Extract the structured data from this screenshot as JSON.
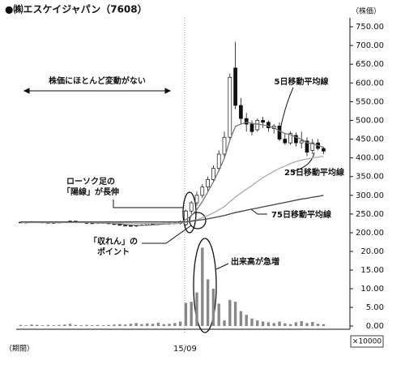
{
  "chart_data": {
    "type": "candlestick",
    "title": "●㈱エスケイジャパン（7608）",
    "y_axis_label": "（株価）",
    "x_axis_label": "（期間）",
    "categories": [
      null,
      null,
      null,
      null,
      null,
      null,
      null,
      null,
      null,
      null,
      null,
      null,
      null,
      null,
      null,
      null,
      null,
      null,
      null,
      null,
      null,
      null,
      null,
      null,
      null,
      null,
      null,
      null,
      null,
      null,
      "15/09",
      null,
      null,
      null,
      null,
      null,
      null,
      null,
      null,
      null,
      null,
      null,
      null,
      null,
      null,
      null,
      null,
      null,
      null,
      null,
      null,
      null,
      null,
      null,
      null,
      null
    ],
    "open": [
      228,
      227,
      228,
      229,
      228,
      227,
      226,
      227,
      228,
      229,
      231,
      229,
      227,
      225,
      226,
      227,
      226,
      224,
      222,
      220,
      219,
      218,
      220,
      221,
      224,
      222,
      225,
      224,
      226,
      225,
      222,
      258,
      280,
      300,
      322,
      342,
      372,
      410,
      455,
      640,
      540,
      505,
      490,
      475,
      500,
      495,
      478,
      485,
      450,
      440,
      460,
      440,
      445,
      420,
      440,
      425
    ],
    "high": [
      230,
      229,
      231,
      230,
      229,
      229,
      228,
      229,
      230,
      233,
      232,
      230,
      228,
      227,
      228,
      228,
      227,
      226,
      224,
      222,
      221,
      221,
      223,
      225,
      226,
      226,
      228,
      227,
      229,
      232,
      262,
      285,
      310,
      330,
      350,
      380,
      420,
      470,
      625,
      710,
      560,
      520,
      500,
      505,
      510,
      500,
      490,
      495,
      465,
      470,
      468,
      470,
      455,
      450,
      450,
      430
    ],
    "low": [
      226,
      225,
      226,
      227,
      226,
      225,
      224,
      225,
      226,
      227,
      228,
      226,
      224,
      223,
      224,
      225,
      223,
      221,
      219,
      217,
      216,
      215,
      218,
      219,
      220,
      220,
      222,
      221,
      223,
      222,
      218,
      250,
      272,
      292,
      310,
      335,
      365,
      400,
      450,
      530,
      490,
      470,
      460,
      470,
      480,
      470,
      465,
      445,
      435,
      435,
      430,
      425,
      405,
      410,
      420,
      410
    ],
    "close": [
      227,
      228,
      229,
      228,
      227,
      226,
      227,
      228,
      229,
      231,
      229,
      227,
      225,
      226,
      227,
      226,
      224,
      222,
      220,
      219,
      218,
      220,
      221,
      224,
      222,
      225,
      224,
      226,
      225,
      230,
      258,
      280,
      300,
      322,
      342,
      372,
      410,
      455,
      615,
      540,
      505,
      490,
      470,
      500,
      495,
      480,
      485,
      450,
      440,
      465,
      440,
      445,
      415,
      440,
      425,
      418
    ],
    "ylim": [
      200,
      750
    ],
    "yticks": [
      {
        "value": 200,
        "label": "200.00"
      },
      {
        "value": 250,
        "label": "250.00"
      },
      {
        "value": 300,
        "label": "300.00"
      },
      {
        "value": 350,
        "label": "350.00"
      },
      {
        "value": 400,
        "label": "400.00"
      },
      {
        "value": 450,
        "label": "450.00"
      },
      {
        "value": 500,
        "label": "500.00"
      },
      {
        "value": 550,
        "label": "550.00"
      },
      {
        "value": 600,
        "label": "600.00"
      },
      {
        "value": 650,
        "label": "650.00"
      },
      {
        "value": 700,
        "label": "700.00"
      },
      {
        "value": 750,
        "label": "750.00"
      }
    ],
    "series": [
      {
        "name": "5日移動平均線",
        "color": "#777777",
        "values": [
          228,
          228,
          228,
          228,
          228,
          227,
          227,
          227,
          228,
          229,
          229,
          229,
          228,
          227,
          226,
          226,
          226,
          225,
          224,
          222,
          221,
          220,
          220,
          220,
          221,
          222,
          223,
          224,
          225,
          226,
          235,
          245,
          262,
          283,
          309,
          336,
          366,
          399,
          447,
          484,
          490,
          495,
          492,
          490,
          488,
          485,
          480,
          472,
          465,
          462,
          455,
          450,
          440,
          438,
          433,
          428
        ]
      },
      {
        "name": "25日移動平均線",
        "color": "#aaaaaa",
        "values": [
          227,
          227,
          227,
          227,
          227,
          227,
          227,
          227,
          227,
          227,
          227,
          227,
          227,
          227,
          227,
          227,
          227,
          226,
          226,
          226,
          226,
          225,
          225,
          225,
          225,
          225,
          225,
          225,
          225,
          226,
          228,
          231,
          235,
          240,
          246,
          253,
          261,
          270,
          283,
          295,
          306,
          316,
          326,
          337,
          347,
          356,
          364,
          372,
          378,
          385,
          390,
          394,
          397,
          400,
          402,
          404
        ]
      },
      {
        "name": "75日移動平均線",
        "color": "#444444",
        "values": [
          229,
          229,
          229,
          229,
          229,
          229,
          229,
          229,
          229,
          229,
          229,
          229,
          229,
          229,
          229,
          229,
          229,
          229,
          229,
          229,
          229,
          229,
          229,
          229,
          229,
          229,
          229,
          229,
          229,
          229,
          229,
          231,
          233,
          235,
          237,
          240,
          243,
          246,
          250,
          254,
          257,
          260,
          263,
          266,
          269,
          272,
          275,
          278,
          281,
          284,
          287,
          290,
          292,
          295,
          297,
          300
        ]
      }
    ],
    "volume": {
      "unit_label": "×10000",
      "color": "#888888",
      "values": [
        0.3,
        0.2,
        0.4,
        0.3,
        0.2,
        0.3,
        0.2,
        0.3,
        0.4,
        0.6,
        0.3,
        0.2,
        0.3,
        0.2,
        0.3,
        0.2,
        0.3,
        0.4,
        0.5,
        0.4,
        0.6,
        0.8,
        0.5,
        0.7,
        0.6,
        0.9,
        0.5,
        0.6,
        0.8,
        1.2,
        6.2,
        6.5,
        9,
        21,
        12.5,
        10,
        6,
        1.5,
        7,
        6.5,
        4,
        3,
        2,
        1.5,
        1.2,
        1,
        0.8,
        1.2,
        0.7,
        0.5,
        1,
        1.3,
        0.8,
        1.1,
        0.6,
        0.5
      ],
      "ylim": [
        0,
        20
      ],
      "yticks": [
        {
          "value": 0,
          "label": "0.00"
        },
        {
          "value": 5,
          "label": "5.00"
        },
        {
          "value": 10,
          "label": "10.00"
        },
        {
          "value": 15,
          "label": "15.00"
        },
        {
          "value": 20,
          "label": "20.00"
        }
      ]
    },
    "annotations": [
      "株価にほとんど変動がない",
      "ローソク足の",
      "「陽線」が長伸",
      "「収れん」の",
      "ポイント",
      "出来高が急増"
    ]
  }
}
